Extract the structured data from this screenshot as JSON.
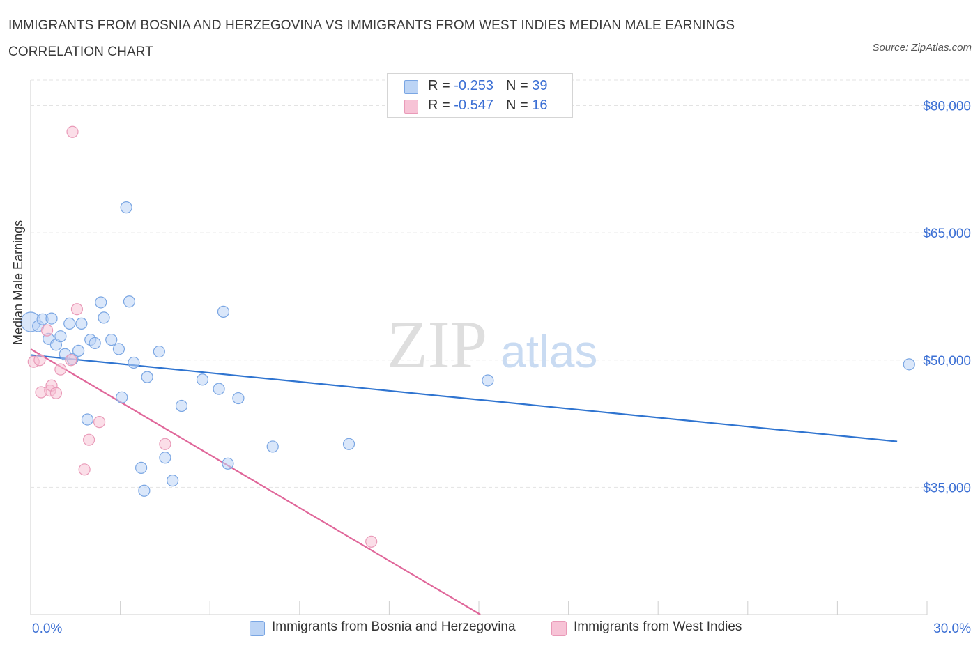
{
  "title": "IMMIGRANTS FROM BOSNIA AND HERZEGOVINA VS IMMIGRANTS FROM WEST INDIES MEDIAN MALE EARNINGS CORRELATION CHART",
  "source": "Source: ZipAtlas.com",
  "watermark": {
    "zip": "ZIP",
    "atlas": "atlas"
  },
  "colors": {
    "blue": "#2f74d0",
    "blue_fill": "#bcd4f5",
    "pink": "#e0679a",
    "pink_fill": "#f7c3d6",
    "axis_text": "#3b6fd4",
    "grid": "#e3e3e3"
  },
  "legend": {
    "row1": {
      "r_label": "R = ",
      "r_value": "-0.253",
      "n_label": "N = ",
      "n_value": "39"
    },
    "row2": {
      "r_label": "R = ",
      "r_value": "-0.547",
      "n_label": "N = ",
      "n_value": "16"
    }
  },
  "bottom_legend": {
    "series1": "Immigrants from Bosnia and Herzegovina",
    "series2": "Immigrants from West Indies"
  },
  "chart_data": {
    "type": "scatter",
    "title": "IMMIGRANTS FROM BOSNIA AND HERZEGOVINA VS IMMIGRANTS FROM WEST INDIES MEDIAN MALE EARNINGS CORRELATION CHART",
    "xlabel": "",
    "ylabel": "Median Male Earnings",
    "xlim": [
      0,
      30
    ],
    "ylim": [
      20000,
      83000
    ],
    "x_tick_labels": [
      "0.0%",
      "30.0%"
    ],
    "y_ticks": [
      35000,
      50000,
      65000,
      80000
    ],
    "y_tick_labels": [
      "$35,000",
      "$50,000",
      "$65,000",
      "$80,000"
    ],
    "grid": true,
    "series": [
      {
        "name": "Immigrants from Bosnia and Herzegovina",
        "color": "#2f74d0",
        "points": [
          [
            0.0,
            54500
          ],
          [
            0.25,
            54000
          ],
          [
            0.4,
            54800
          ],
          [
            0.6,
            52500
          ],
          [
            0.7,
            54900
          ],
          [
            0.85,
            51800
          ],
          [
            1.0,
            52800
          ],
          [
            1.15,
            50700
          ],
          [
            1.3,
            54300
          ],
          [
            1.4,
            50100
          ],
          [
            1.6,
            51100
          ],
          [
            1.7,
            54300
          ],
          [
            1.9,
            43000
          ],
          [
            2.0,
            52400
          ],
          [
            2.15,
            52000
          ],
          [
            2.35,
            56800
          ],
          [
            2.45,
            55000
          ],
          [
            2.7,
            52400
          ],
          [
            2.95,
            51300
          ],
          [
            3.05,
            45600
          ],
          [
            3.2,
            68000
          ],
          [
            3.3,
            56900
          ],
          [
            3.45,
            49700
          ],
          [
            3.7,
            37300
          ],
          [
            3.8,
            34600
          ],
          [
            3.9,
            48000
          ],
          [
            4.3,
            51000
          ],
          [
            4.5,
            38500
          ],
          [
            4.75,
            35800
          ],
          [
            5.05,
            44600
          ],
          [
            5.75,
            47700
          ],
          [
            6.3,
            46600
          ],
          [
            6.45,
            55700
          ],
          [
            6.6,
            37800
          ],
          [
            6.95,
            45500
          ],
          [
            8.1,
            39800
          ],
          [
            10.65,
            40100
          ],
          [
            15.3,
            47600
          ],
          [
            29.4,
            49500
          ]
        ],
        "trend": [
          [
            0.0,
            50600
          ],
          [
            29.0,
            40400
          ]
        ]
      },
      {
        "name": "Immigrants from West Indies",
        "color": "#e0679a",
        "points": [
          [
            0.1,
            49800
          ],
          [
            0.3,
            50000
          ],
          [
            0.35,
            46200
          ],
          [
            0.55,
            53500
          ],
          [
            0.65,
            46400
          ],
          [
            0.7,
            47000
          ],
          [
            0.85,
            46100
          ],
          [
            1.0,
            48900
          ],
          [
            1.35,
            50000
          ],
          [
            1.4,
            76900
          ],
          [
            1.55,
            56000
          ],
          [
            1.8,
            37100
          ],
          [
            1.95,
            40600
          ],
          [
            2.3,
            42700
          ],
          [
            4.5,
            40100
          ],
          [
            11.4,
            28600
          ]
        ],
        "trend": [
          [
            0.0,
            51300
          ],
          [
            15.05,
            20000
          ]
        ]
      }
    ]
  }
}
